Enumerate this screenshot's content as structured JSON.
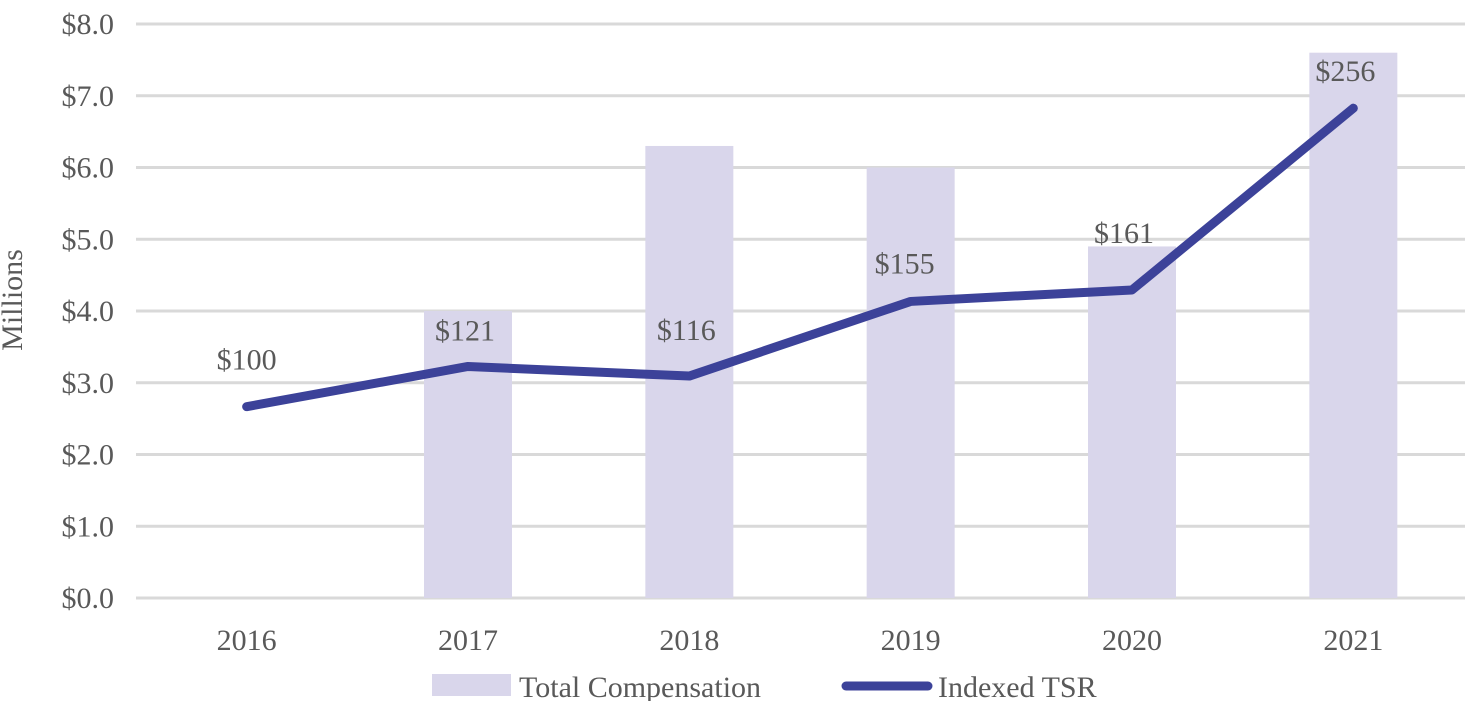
{
  "chart_data": {
    "type": "combo",
    "title": "",
    "categories": [
      "2016",
      "2017",
      "2018",
      "2019",
      "2020",
      "2021"
    ],
    "series": [
      {
        "name": "Total Compensation",
        "type": "bar",
        "axis": "primary",
        "values": [
          null,
          4.0,
          6.3,
          6.0,
          4.9,
          7.6
        ],
        "color": "#D9D6EB"
      },
      {
        "name": "Indexed TSR",
        "type": "line",
        "axis": "secondary",
        "values": [
          100,
          121,
          116,
          155,
          161,
          256
        ],
        "labels": [
          "$100",
          "$121",
          "$116",
          "$155",
          "$161",
          "$256"
        ],
        "color": "#3C4299"
      }
    ],
    "primary_axis": {
      "label": "Millions",
      "min": 0,
      "max": 8,
      "tick_step": 1,
      "ticks": [
        "$0.0",
        "$1.0",
        "$2.0",
        "$3.0",
        "$4.0",
        "$5.0",
        "$6.0",
        "$7.0",
        "$8.0"
      ]
    },
    "secondary_axis": {
      "hidden": true,
      "min": 0,
      "max": 300,
      "note": "Indexed TSR line plotted on hidden secondary axis; 300 aligns with $8.0 on primary axis"
    },
    "grid": true,
    "legend_position": "bottom-center",
    "colors": {
      "gridline": "#D9D9D9",
      "text": "#595959",
      "background": "#FFFFFF",
      "bar_fill": "#D9D6EB",
      "line_stroke": "#3C4299"
    },
    "label_offsets": {
      "dx": [
        0,
        -3,
        -3,
        -6,
        -8,
        -8
      ],
      "dy": [
        -47,
        -36,
        -46,
        -38,
        -57,
        -37
      ]
    }
  }
}
